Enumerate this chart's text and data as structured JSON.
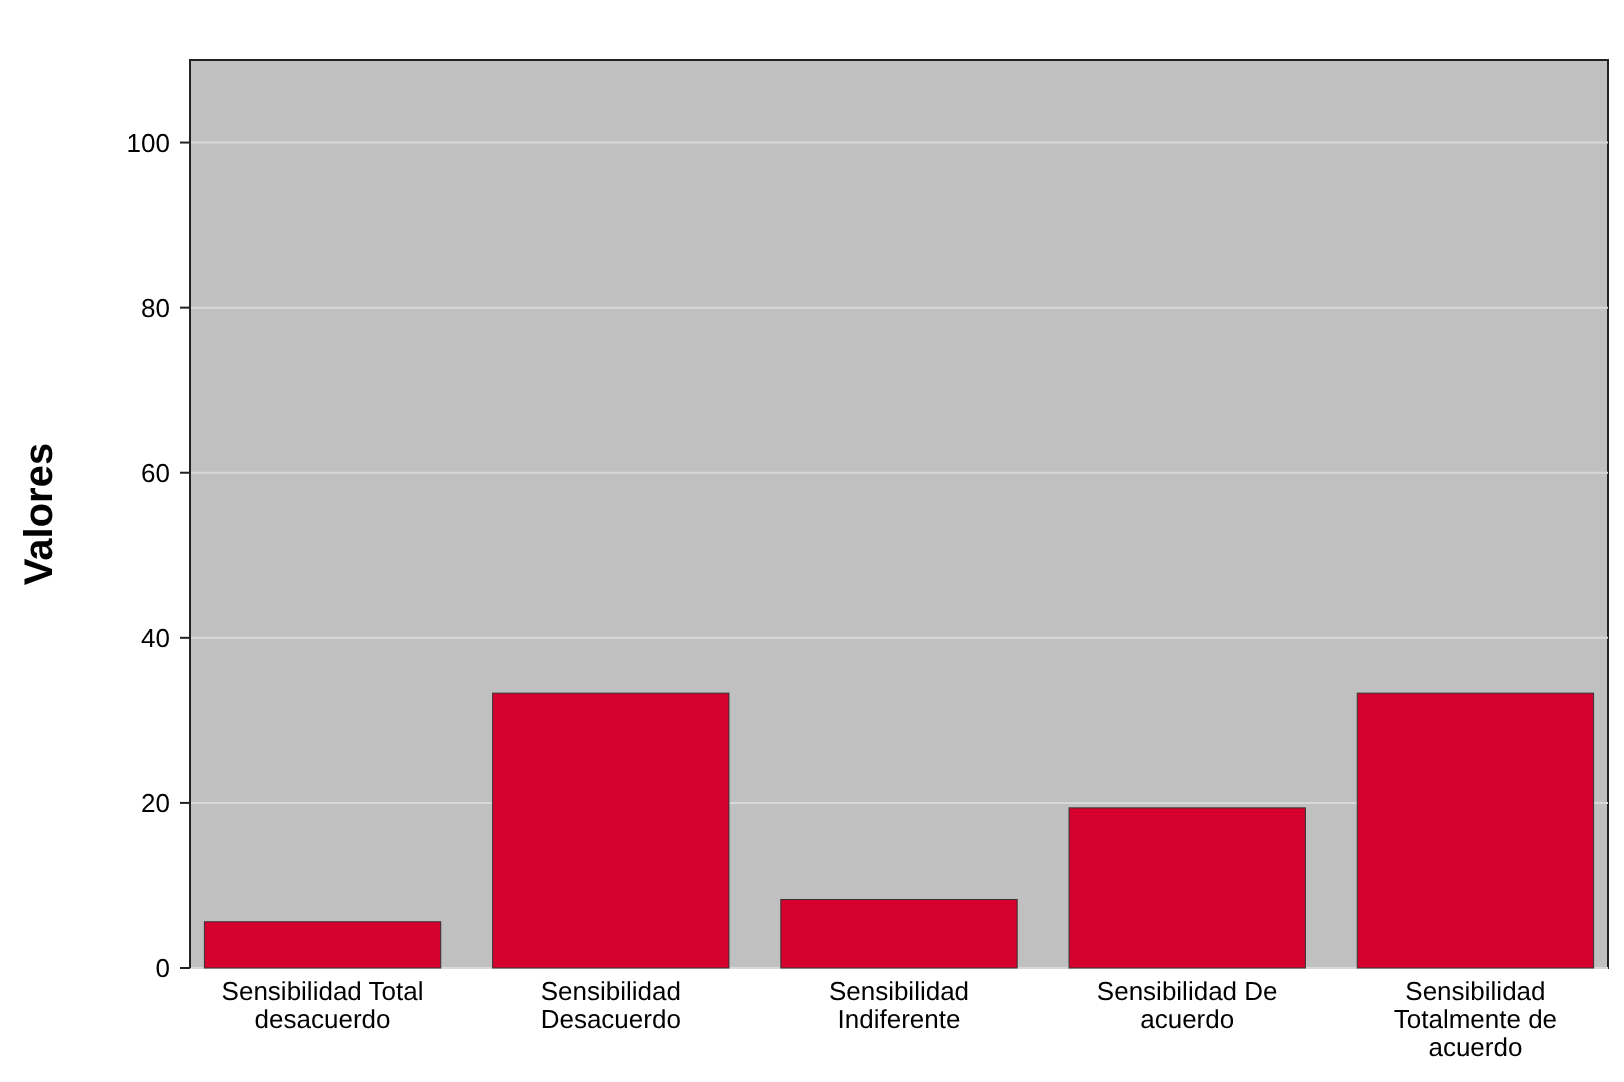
{
  "chart_data": {
    "type": "bar",
    "ylabel": "Valores",
    "categories": [
      "Sensibilidad Total desacuerdo",
      "Sensibilidad Desacuerdo",
      "Sensibilidad Indiferente",
      "Sensibilidad De acuerdo",
      "Sensibilidad Totalmente de acuerdo"
    ],
    "values": [
      5.6,
      33.3,
      8.3,
      19.4,
      33.3
    ],
    "color": "#d6002e",
    "ylim": [
      0,
      110
    ],
    "yticks": [
      0,
      20,
      40,
      60,
      80,
      100
    ],
    "grid": "y"
  }
}
